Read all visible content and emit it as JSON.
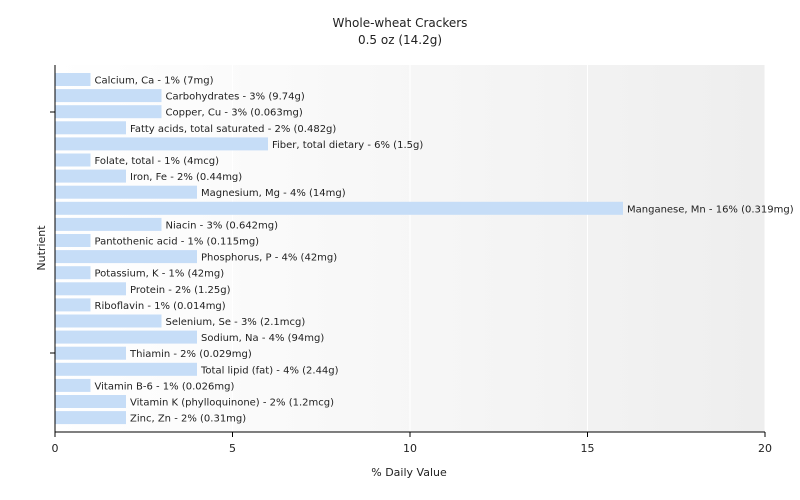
{
  "chart_data": {
    "type": "bar",
    "orientation": "horizontal",
    "title": "Whole-wheat Crackers",
    "subtitle": "0.5 oz (14.2g)",
    "xlabel": "% Daily Value",
    "ylabel": "Nutrient",
    "xlim": [
      0,
      20
    ],
    "xticks": [
      0,
      5,
      10,
      15,
      20
    ],
    "grid": true,
    "colors": {
      "bar": "#c6ddf7",
      "plot_bg_start": "#ffffff",
      "plot_bg_end": "#eeeeee",
      "grid": "#ffffff",
      "axis": "#000000"
    },
    "categories": [
      "Calcium, Ca",
      "Carbohydrates",
      "Copper, Cu",
      "Fatty acids, total saturated",
      "Fiber, total dietary",
      "Folate, total",
      "Iron, Fe",
      "Magnesium, Mg",
      "Manganese, Mn",
      "Niacin",
      "Pantothenic acid",
      "Phosphorus, P",
      "Potassium, K",
      "Protein",
      "Riboflavin",
      "Selenium, Se",
      "Sodium, Na",
      "Thiamin",
      "Total lipid (fat)",
      "Vitamin B-6",
      "Vitamin K (phylloquinone)",
      "Zinc, Zn"
    ],
    "values": [
      1,
      3,
      3,
      2,
      6,
      1,
      2,
      4,
      16,
      3,
      1,
      4,
      1,
      2,
      1,
      3,
      4,
      2,
      4,
      1,
      2,
      2
    ],
    "labels": [
      "Calcium, Ca - 1% (7mg)",
      "Carbohydrates - 3% (9.74g)",
      "Copper, Cu - 3% (0.063mg)",
      "Fatty acids, total saturated - 2% (0.482g)",
      "Fiber, total dietary - 6% (1.5g)",
      "Folate, total - 1% (4mcg)",
      "Iron, Fe - 2% (0.44mg)",
      "Magnesium, Mg - 4% (14mg)",
      "Manganese, Mn - 16% (0.319mg)",
      "Niacin - 3% (0.642mg)",
      "Pantothenic acid - 1% (0.115mg)",
      "Phosphorus, P - 4% (42mg)",
      "Potassium, K - 1% (42mg)",
      "Protein - 2% (1.25g)",
      "Riboflavin - 1% (0.014mg)",
      "Selenium, Se - 3% (2.1mcg)",
      "Sodium, Na - 4% (94mg)",
      "Thiamin - 2% (0.029mg)",
      "Total lipid (fat) - 4% (2.44g)",
      "Vitamin B-6 - 1% (0.026mg)",
      "Vitamin K (phylloquinone) - 2% (1.2mcg)",
      "Zinc, Zn - 2% (0.31mg)"
    ]
  }
}
